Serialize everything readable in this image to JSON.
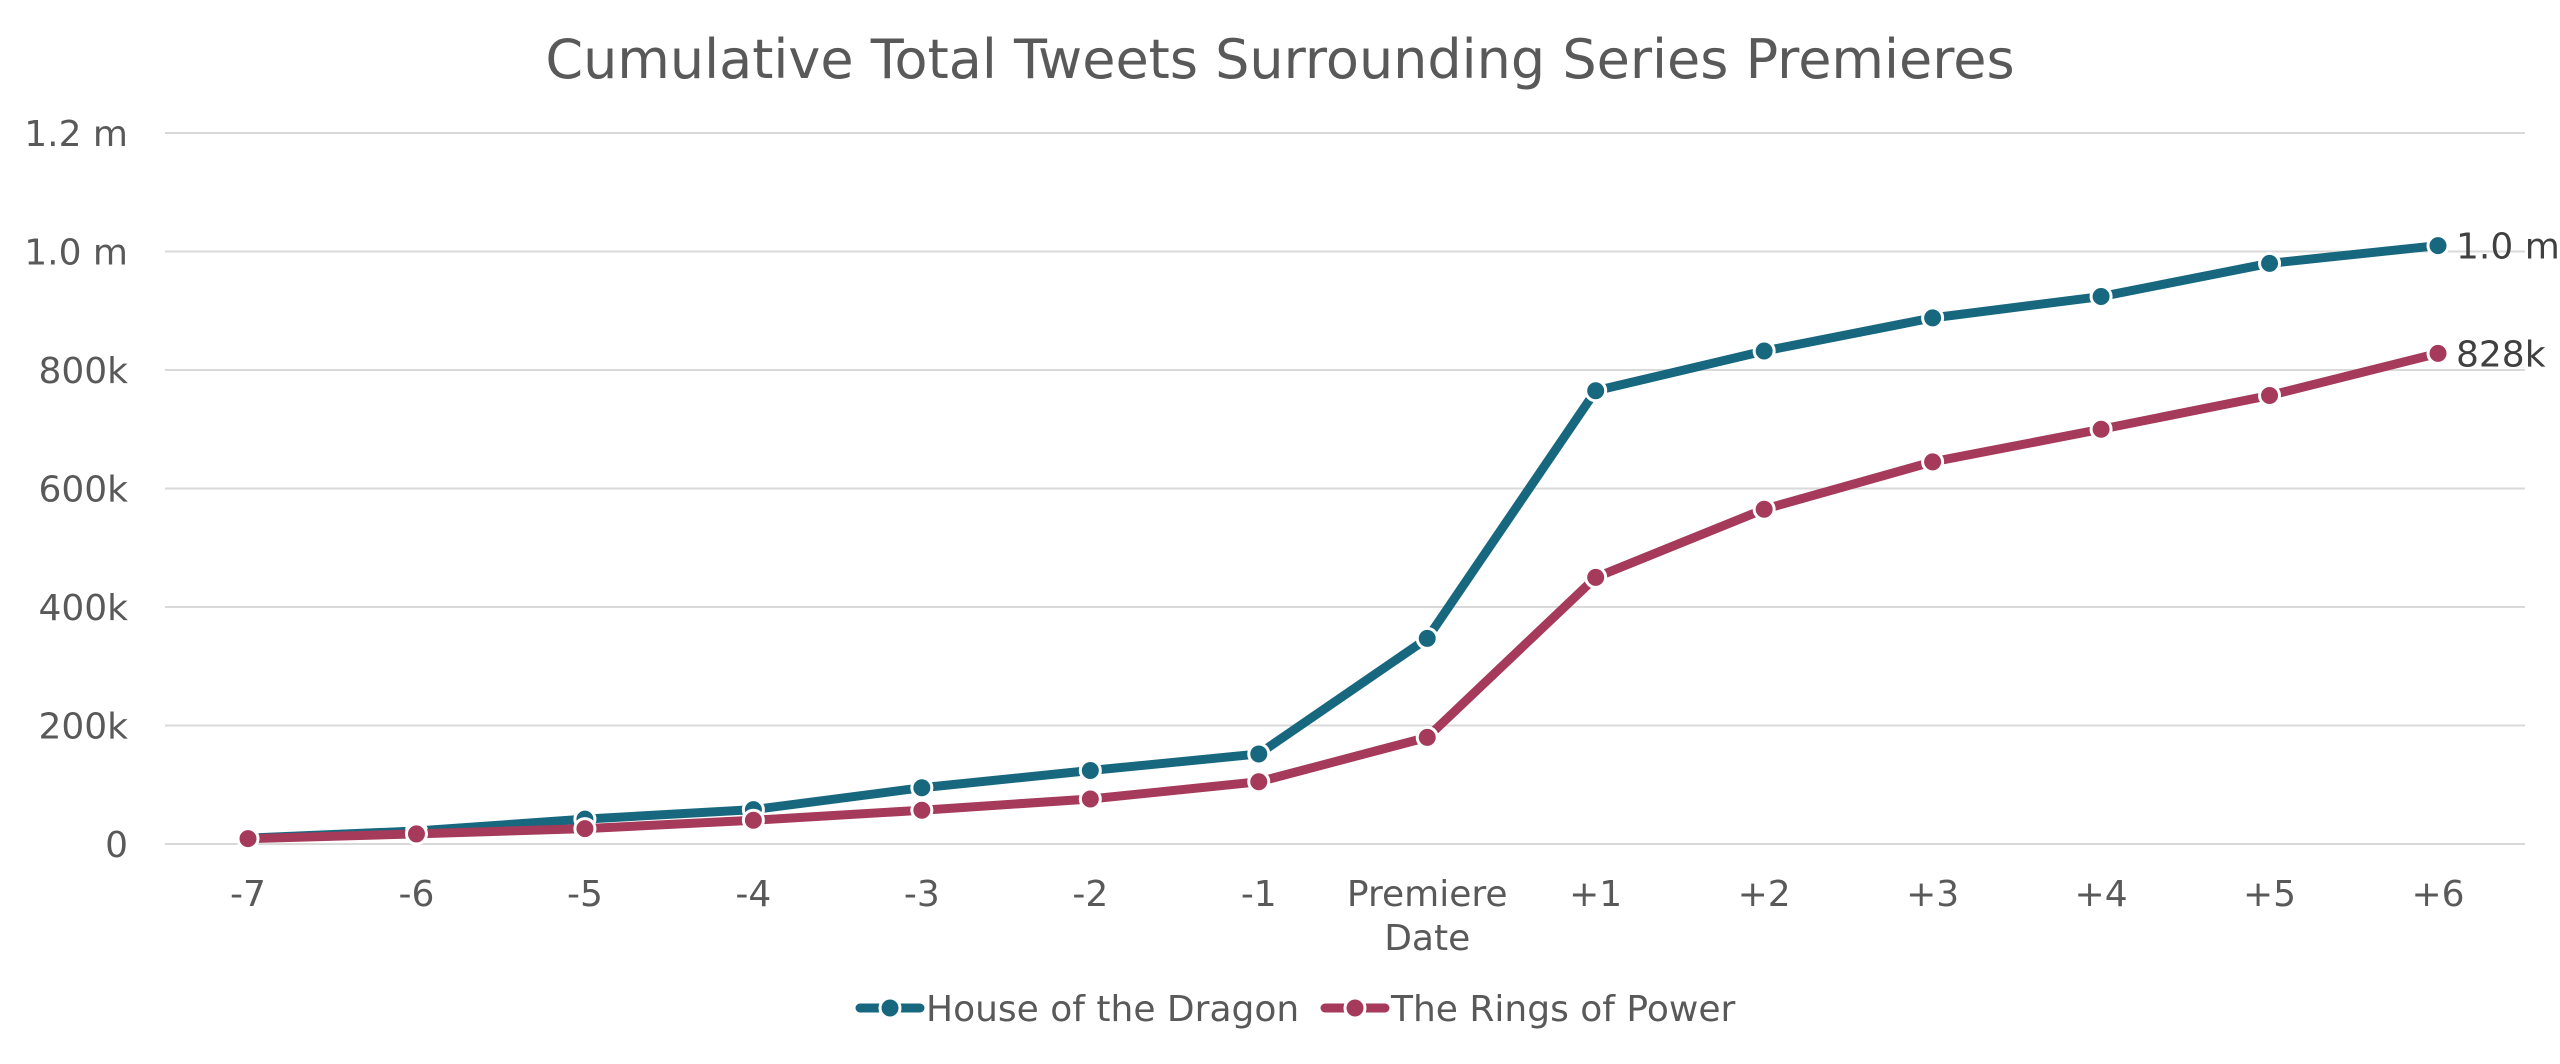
{
  "chart_data": {
    "type": "line",
    "title": "Cumulative Total Tweets Surrounding Series Premieres",
    "xlabel": "",
    "ylabel": "",
    "categories": [
      "-7",
      "-6",
      "-5",
      "-4",
      "-3",
      "-2",
      "-1",
      "Premiere Date",
      "+1",
      "+2",
      "+3",
      "+4",
      "+5",
      "+6"
    ],
    "ylim": [
      0,
      1200000
    ],
    "y_ticks": [
      {
        "value": 0,
        "label": "0"
      },
      {
        "value": 200000,
        "label": "200k"
      },
      {
        "value": 400000,
        "label": "400k"
      },
      {
        "value": 600000,
        "label": "600k"
      },
      {
        "value": 800000,
        "label": "800k"
      },
      {
        "value": 1000000,
        "label": "1.0 m"
      },
      {
        "value": 1200000,
        "label": "1.2 m"
      }
    ],
    "grid": true,
    "legend_position": "bottom",
    "series": [
      {
        "name": "House of the Dragon",
        "color": "#17687f",
        "values": [
          10000,
          22000,
          42000,
          58000,
          95000,
          124000,
          152000,
          347000,
          765000,
          832000,
          888000,
          924000,
          980000,
          1010000
        ],
        "end_label": "1.0 m"
      },
      {
        "name": "The Rings of Power",
        "color": "#a63a5a",
        "values": [
          9000,
          17000,
          26000,
          40000,
          57000,
          76000,
          105000,
          180000,
          450000,
          565000,
          645000,
          700000,
          757000,
          828000
        ],
        "end_label": "828k"
      }
    ]
  }
}
